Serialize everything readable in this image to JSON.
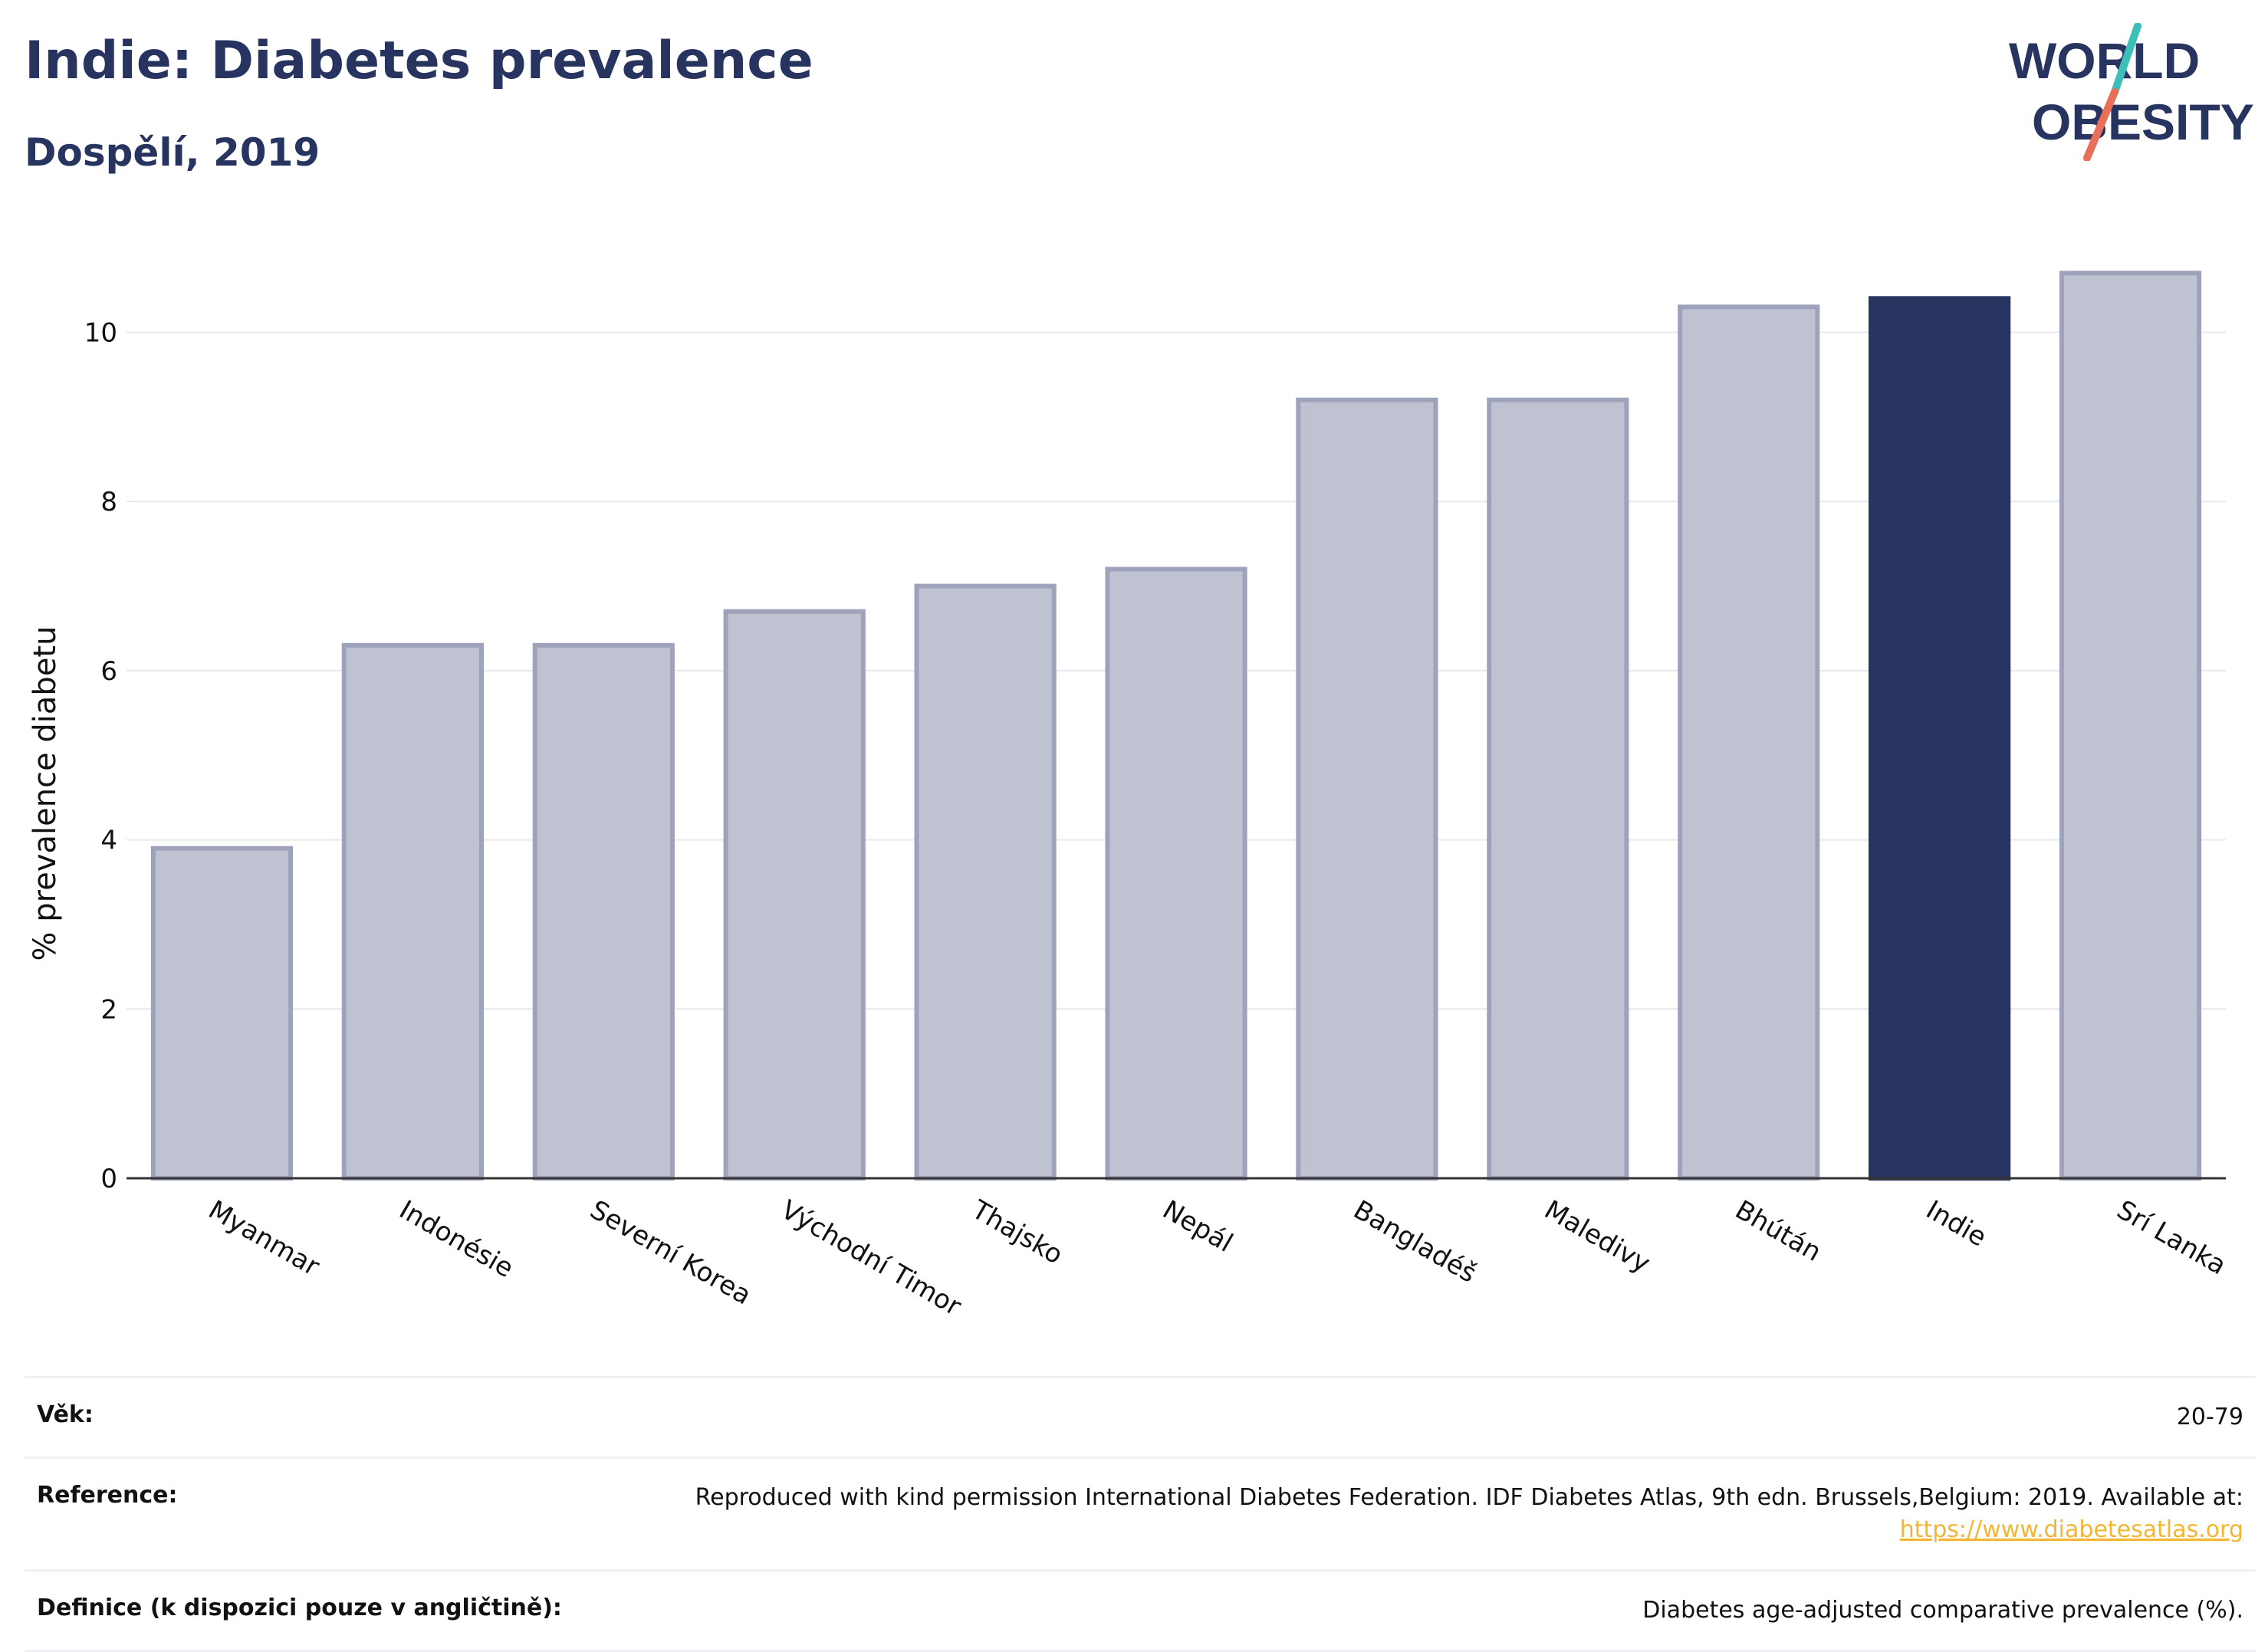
{
  "header": {
    "title": "Indie: Diabetes prevalence",
    "subtitle": "Dospělí, 2019",
    "logo_line1": "WORLD",
    "logo_line2": "OBESITY"
  },
  "colors": {
    "navy": "#283460",
    "bar_fill": "#bfc2d0",
    "bar_stroke": "#9ea3bb",
    "highlight": "#283460",
    "logo_teal": "#3dbfb9",
    "logo_coral": "#e8705a",
    "link": "#f2b632"
  },
  "chart_data": {
    "type": "bar",
    "title": "Indie: Diabetes prevalence",
    "subtitle": "Dospělí, 2019",
    "xlabel": "",
    "ylabel": "% prevalence diabetu",
    "categories": [
      "Myanmar",
      "Indonésie",
      "Severní Korea",
      "Východní Timor",
      "Thajsko",
      "Nepál",
      "Bangladéš",
      "Maledivy",
      "Bhútán",
      "Indie",
      "Srí Lanka"
    ],
    "values": [
      3.9,
      6.3,
      6.3,
      6.7,
      7.0,
      7.2,
      9.2,
      9.2,
      10.3,
      10.4,
      10.7
    ],
    "highlight": "Indie",
    "ylim": [
      0,
      11.3
    ],
    "yticks": [
      0,
      2,
      4,
      6,
      8,
      10
    ],
    "grid": true,
    "legend": "none"
  },
  "info": {
    "age_label": "Věk:",
    "age_value": "20-79",
    "reference_label": "Reference:",
    "reference_text": "Reproduced with kind permission International Diabetes Federation. IDF Diabetes Atlas, 9th edn. Brussels,Belgium: 2019. Available at:",
    "reference_link": "https://www.diabetesatlas.org",
    "definition_label": "Definice (k dispozici pouze v angličtině):",
    "definition_value": "Diabetes age-adjusted comparative prevalence (%)."
  }
}
